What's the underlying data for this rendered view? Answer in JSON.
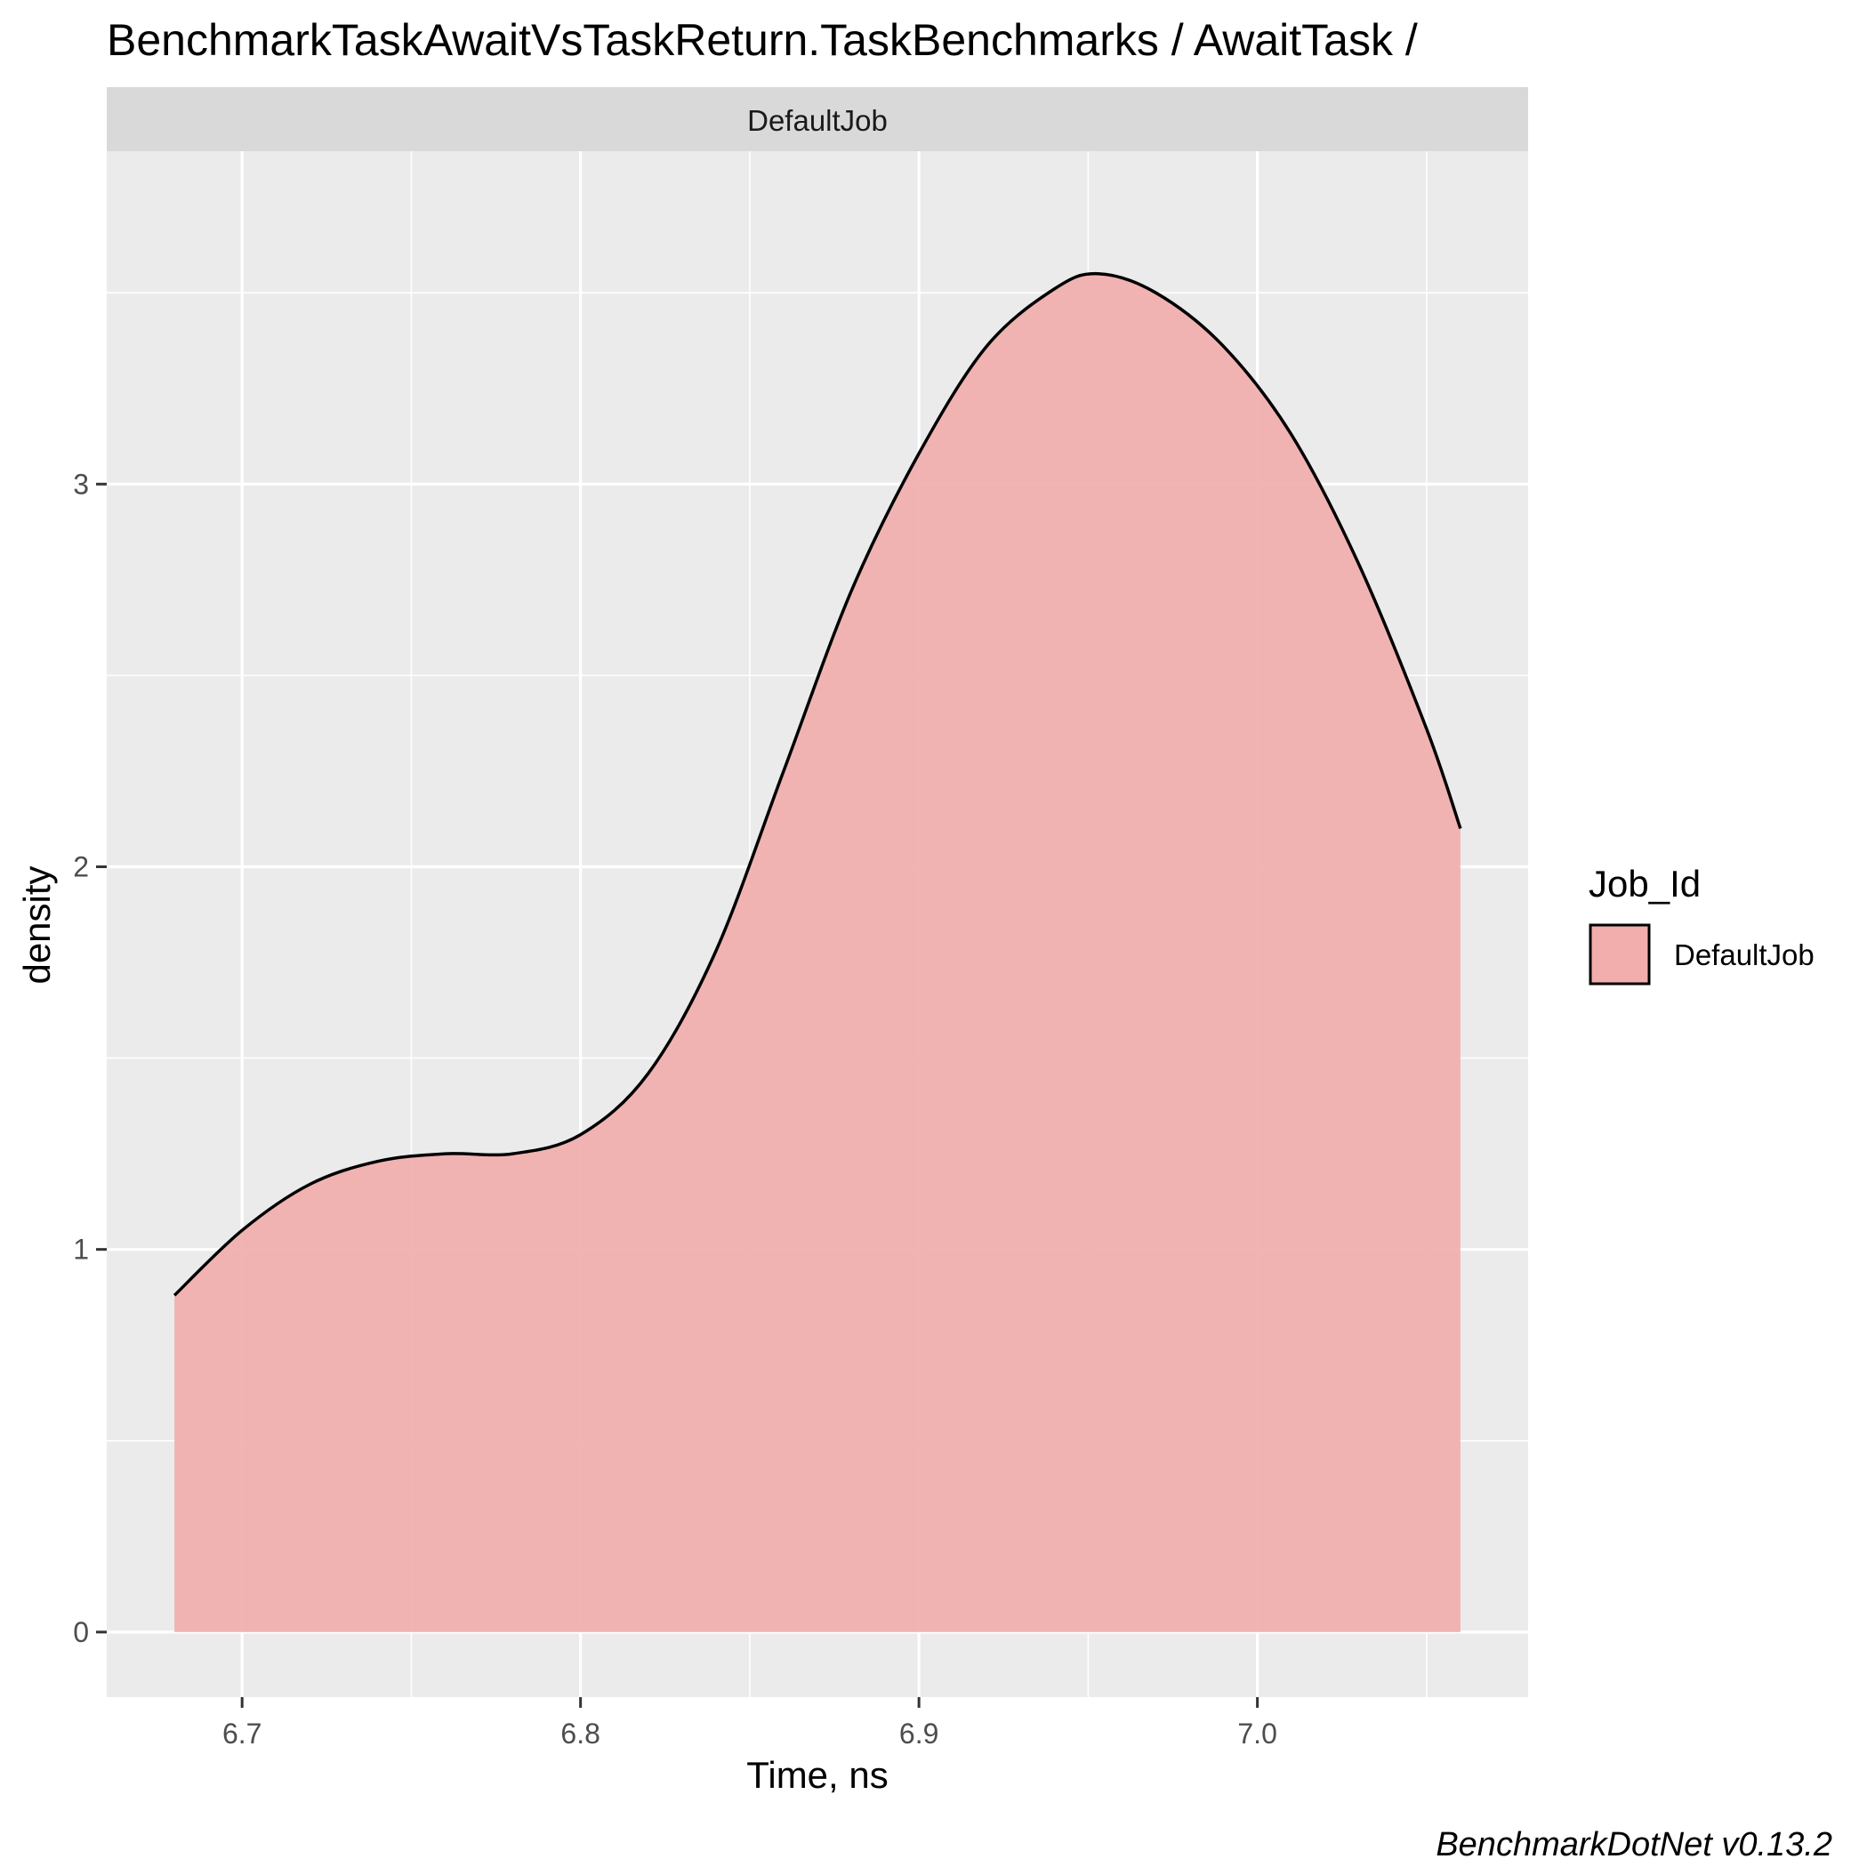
{
  "chart_data": {
    "type": "area",
    "title": "BenchmarkTaskAwaitVsTaskReturn.TaskBenchmarks / AwaitTask /",
    "facet": "DefaultJob",
    "xlabel": "Time, ns",
    "ylabel": "density",
    "xlim": [
      6.66,
      7.08
    ],
    "ylim": [
      -0.17,
      3.87
    ],
    "x_ticks": [
      6.7,
      6.8,
      6.9,
      7.0
    ],
    "x_tick_labels": [
      "6.7",
      "6.8",
      "6.9",
      "7.0"
    ],
    "x_minor": [
      6.75,
      6.85,
      6.95,
      7.05
    ],
    "y_ticks": [
      0,
      1,
      2,
      3
    ],
    "y_tick_labels": [
      "0",
      "1",
      "2",
      "3"
    ],
    "y_minor": [
      0.5,
      1.5,
      2.5,
      3.5
    ],
    "grid": true,
    "legend": {
      "title": "Job_Id",
      "position": "right",
      "entries": [
        {
          "label": "DefaultJob",
          "fill": "#f1aeac"
        }
      ]
    },
    "caption": "BenchmarkDotNet v0.13.2",
    "series": [
      {
        "fill": "#f1aeac",
        "line": "#000000",
        "x": [
          6.68,
          6.7,
          6.72,
          6.74,
          6.76,
          6.78,
          6.8,
          6.82,
          6.84,
          6.86,
          6.88,
          6.9,
          6.92,
          6.94,
          6.953,
          6.97,
          6.99,
          7.01,
          7.03,
          7.05,
          7.06
        ],
        "y": [
          0.88,
          1.05,
          1.17,
          1.23,
          1.25,
          1.25,
          1.3,
          1.46,
          1.78,
          2.25,
          2.72,
          3.08,
          3.36,
          3.51,
          3.55,
          3.5,
          3.36,
          3.13,
          2.79,
          2.36,
          2.1
        ]
      }
    ],
    "colors": {
      "panel": "#ebebeb",
      "strip": "#d9d9d9",
      "grid": "#ffffff"
    }
  }
}
